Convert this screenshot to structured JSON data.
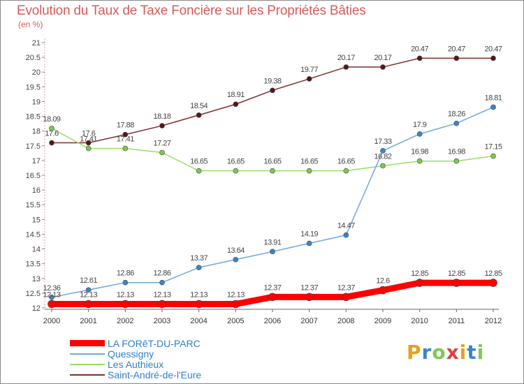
{
  "chart_data": {
    "type": "line",
    "title": "Evolution du Taux de Taxe Foncière sur les Propriétés Bâties",
    "subtitle": "(en %)",
    "xlabel": "",
    "ylabel": "",
    "x": [
      "2000",
      "2001",
      "2002",
      "2003",
      "2004",
      "2005",
      "2006",
      "2007",
      "2008",
      "2009",
      "2010",
      "2011",
      "2012"
    ],
    "ylim": [
      12,
      21
    ],
    "yticks": [
      "12",
      "12.5",
      "13",
      "13.5",
      "14",
      "14.5",
      "15",
      "15.5",
      "16",
      "16.5",
      "17",
      "17.5",
      "18",
      "18.5",
      "19",
      "19.5",
      "20",
      "20.5",
      "21"
    ],
    "grid": false,
    "legend_position": "bottom-left",
    "series": [
      {
        "name": "LA FORêT-DU-PARC",
        "color": "#ff0000",
        "point_color": "#ff0000",
        "values": [
          12.13,
          12.13,
          12.13,
          12.13,
          12.13,
          12.13,
          12.37,
          12.37,
          12.37,
          12.6,
          12.85,
          12.85,
          12.85
        ],
        "labels": [
          "12.13",
          "12.13",
          "12.13",
          "12.13",
          "12.13",
          "12.13",
          "12.37",
          "12.37",
          "12.37",
          "12.6",
          "12.85",
          "12.85",
          "12.85"
        ]
      },
      {
        "name": "Quessigny",
        "color": "#6fa8dc",
        "point_color": "#3d85c6",
        "values": [
          12.36,
          12.61,
          12.86,
          12.86,
          13.37,
          13.64,
          13.91,
          14.19,
          14.47,
          17.33,
          17.9,
          18.26,
          18.81
        ],
        "labels": [
          "12.36",
          "12.61",
          "12.86",
          "12.86",
          "13.37",
          "13.64",
          "13.91",
          "14.19",
          "14.47",
          "17.33",
          "17.9",
          "18.26",
          "18.81"
        ]
      },
      {
        "name": "Les Authieux",
        "color": "#99dd66",
        "point_color": "#7ec850",
        "values": [
          18.09,
          17.41,
          17.41,
          17.27,
          16.65,
          16.65,
          16.65,
          16.65,
          16.65,
          16.82,
          16.98,
          16.98,
          17.15
        ],
        "labels": [
          "18.09",
          "17.41",
          "17.41",
          "17.27",
          "16.65",
          "16.65",
          "16.65",
          "16.65",
          "16.65",
          "16.82",
          "16.98",
          "16.98",
          "17.15"
        ]
      },
      {
        "name": "Saint-André-de-l'Eure",
        "color": "#7f2d2d",
        "point_color": "#5a1515",
        "values": [
          17.6,
          17.6,
          17.88,
          18.18,
          18.54,
          18.91,
          19.38,
          19.77,
          20.17,
          20.17,
          20.47,
          20.47,
          20.47
        ],
        "labels": [
          "17.6",
          "17.6",
          "17.88",
          "18.18",
          "18.54",
          "18.91",
          "19.38",
          "19.77",
          "20.17",
          "20.17",
          "20.47",
          "20.47",
          "20.47"
        ]
      }
    ]
  },
  "logo": {
    "letters": [
      "P",
      "r",
      "o",
      "x",
      "i",
      "t",
      "i"
    ],
    "colors": [
      "#e8a020",
      "#3d85c6",
      "#7ec850",
      "#e04040",
      "#e8a020",
      "#3d85c6",
      "#7ec850"
    ]
  }
}
